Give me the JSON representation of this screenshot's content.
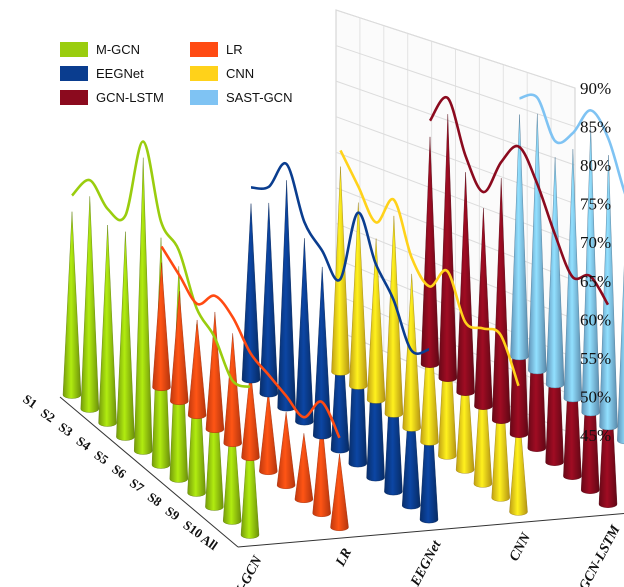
{
  "chart_data": {
    "type": "3d-cone-column",
    "series_colors": {
      "M-GCN": "#9acd0e",
      "LR": "#ff4a12",
      "EEGNet": "#0a3d8f",
      "CNN": "#ffd21a",
      "GCN-LSTM": "#8b0a1e",
      "SAST-GCN": "#7fc3f3"
    },
    "legend": [
      {
        "label": "M-GCN",
        "color": "#9acd0e"
      },
      {
        "label": "LR",
        "color": "#ff4a12"
      },
      {
        "label": "EEGNet",
        "color": "#0a3d8f"
      },
      {
        "label": "CNN",
        "color": "#ffd21a"
      },
      {
        "label": "GCN-LSTM",
        "color": "#8b0a1e"
      },
      {
        "label": "SAST-GCN",
        "color": "#7fc3f3"
      }
    ],
    "categories": [
      "S1",
      "S2",
      "S3",
      "S4",
      "S5",
      "S6",
      "S7",
      "S8",
      "S9",
      "S10",
      "All"
    ],
    "methods": [
      "M-GCN",
      "LR",
      "EEGNet",
      "CNN",
      "GCN-LSTM",
      "SAST-GCN"
    ],
    "series": [
      {
        "name": "M-GCN",
        "values": [
          70,
          74,
          72,
          73,
          85,
          76,
          74,
          68,
          66,
          62,
          63
        ]
      },
      {
        "name": "LR",
        "values": [
          62,
          60,
          58,
          61,
          60,
          57,
          56,
          55,
          54,
          58,
          55
        ]
      },
      {
        "name": "EEGNet",
        "values": [
          69,
          71,
          76,
          70,
          68,
          66,
          77,
          72,
          69,
          64,
          66
        ]
      },
      {
        "name": "CNN",
        "values": [
          73,
          70,
          67,
          72,
          66,
          64,
          68,
          63,
          64,
          65,
          60
        ]
      },
      {
        "name": "GCN-LSTM",
        "values": [
          76,
          81,
          75,
          72,
          78,
          82,
          79,
          74,
          70,
          72,
          70
        ]
      },
      {
        "name": "SAST-GCN",
        "values": [
          78,
          80,
          76,
          79,
          84,
          82,
          76,
          73,
          70,
          68,
          70
        ]
      }
    ],
    "z_ticks": [
      "45%",
      "50%",
      "55%",
      "60%",
      "65%",
      "70%",
      "75%",
      "80%",
      "85%",
      "90%"
    ],
    "zlim": [
      45,
      90
    ],
    "grid": true
  }
}
